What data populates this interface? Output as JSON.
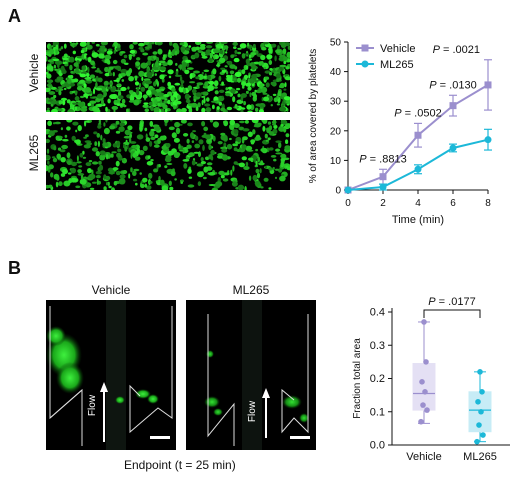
{
  "panelA": {
    "label": "A",
    "image_labels": [
      "Vehicle",
      "ML265"
    ],
    "image_style": {
      "bg": "#000000",
      "fluorescence": "#22dd22"
    }
  },
  "panelB": {
    "label": "B",
    "image_titles": [
      "Vehicle",
      "ML265"
    ],
    "flow_label": "Flow",
    "caption": "Endpoint (t = 25 min)"
  },
  "chart_data": [
    {
      "type": "line",
      "x": [
        0,
        2,
        4,
        6,
        8
      ],
      "xlabel": "Time (min)",
      "ylabel": "% of area covered by platelets",
      "xlim": [
        0,
        8
      ],
      "ylim": [
        0,
        50
      ],
      "xticks": [
        "0",
        "2",
        "4",
        "6",
        "8"
      ],
      "yticks": [
        "0",
        "10",
        "20",
        "30",
        "40",
        "50"
      ],
      "legend": "top-left",
      "series": [
        {
          "name": "Vehicle",
          "color": "#9b8fce",
          "marker": "square",
          "values": [
            0,
            4.5,
            18.5,
            28.5,
            35.5
          ],
          "err": [
            0.5,
            2.5,
            4,
            3.5,
            8.5
          ]
        },
        {
          "name": "ML265",
          "color": "#1cb8d8",
          "marker": "circle",
          "values": [
            0,
            1,
            7,
            14.2,
            17
          ],
          "err": [
            0.3,
            1,
            1.5,
            1.3,
            3.5
          ]
        }
      ],
      "annotations": [
        {
          "text": "P = .8813",
          "x": 2
        },
        {
          "text": "P = .0502",
          "x": 4
        },
        {
          "text": "P = .0130",
          "x": 6
        },
        {
          "text": "P = .0021",
          "x": 8
        }
      ]
    },
    {
      "type": "box",
      "categories": [
        "Vehicle",
        "ML265"
      ],
      "ylabel": "Fraction total area",
      "ylim": [
        0,
        0.4
      ],
      "yticks": [
        "0.0",
        "0.1",
        "0.2",
        "0.3",
        "0.4"
      ],
      "boxes": [
        {
          "name": "Vehicle",
          "color": "#9b8fce",
          "fill": "#e4e0f4",
          "min": 0.065,
          "q1": 0.105,
          "median": 0.155,
          "q3": 0.245,
          "max": 0.37,
          "points": [
            0.37,
            0.25,
            0.19,
            0.16,
            0.12,
            0.105,
            0.07
          ]
        },
        {
          "name": "ML265",
          "color": "#1cb8d8",
          "fill": "#c7ecf6",
          "min": 0.01,
          "q1": 0.04,
          "median": 0.105,
          "q3": 0.16,
          "max": 0.22,
          "points": [
            0.22,
            0.16,
            0.13,
            0.1,
            0.06,
            0.03,
            0.01
          ]
        }
      ],
      "annotation": "P = .0177"
    }
  ]
}
